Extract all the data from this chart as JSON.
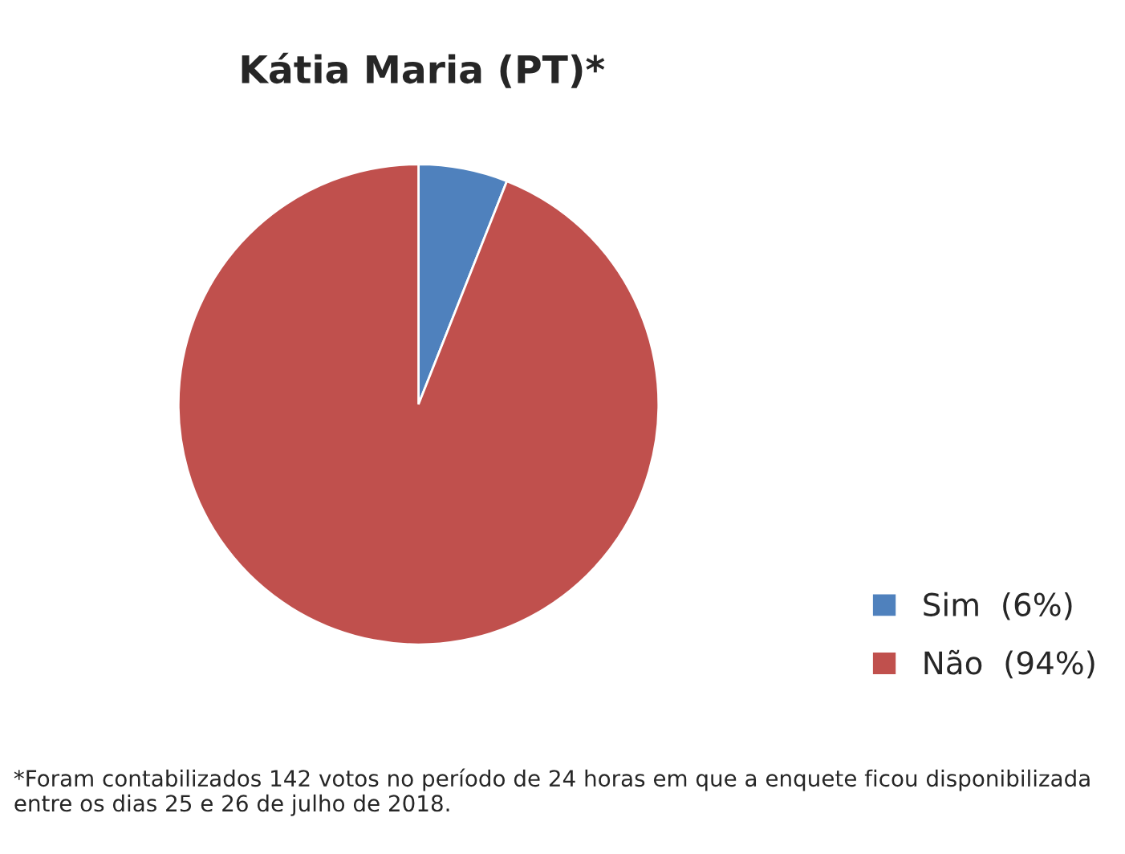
{
  "chart_data": {
    "type": "pie",
    "title": "Kátia Maria (PT)*",
    "categories": [
      "Sim",
      "Não"
    ],
    "values": [
      6,
      94
    ],
    "value_labels": [
      "(6%)",
      "(94%)"
    ],
    "colors": [
      "#4f81bd",
      "#c0504d"
    ],
    "legend": "bottom right",
    "annotations": [
      "*Foram contabilizados 142 votos no período de 24 horas em que a enquete ficou disponibilizada entre os dias 25 e 26 de julho de 2018."
    ]
  }
}
